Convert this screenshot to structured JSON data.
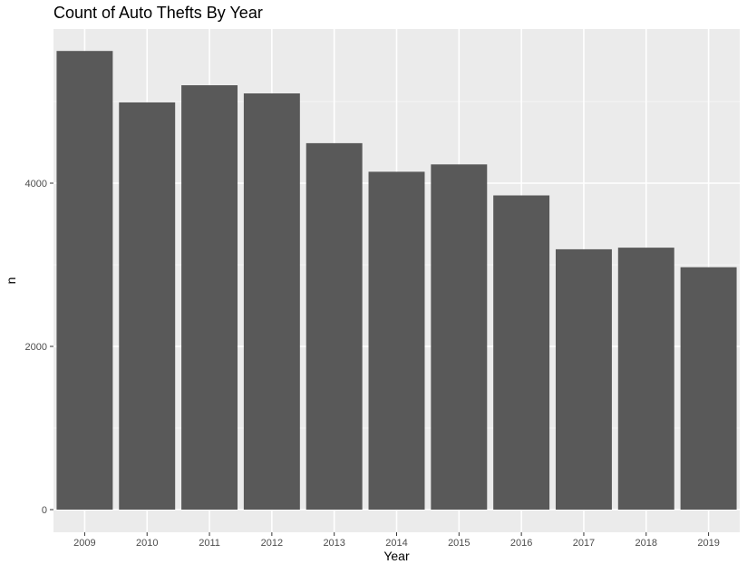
{
  "chart_data": {
    "type": "bar",
    "title": "Count of Auto Thefts By Year",
    "xlabel": "Year",
    "ylabel": "n",
    "categories": [
      "2009",
      "2010",
      "2011",
      "2012",
      "2013",
      "2014",
      "2015",
      "2016",
      "2017",
      "2018",
      "2019"
    ],
    "values": [
      5620,
      4990,
      5200,
      5100,
      4490,
      4140,
      4230,
      3850,
      3190,
      3210,
      2970
    ],
    "yticks": [
      0,
      2000,
      4000
    ],
    "ylim": [
      0,
      5880
    ],
    "grid": true,
    "legend": "none",
    "colors": {
      "bar": "#595959",
      "panel": "#ebebeb",
      "grid_major": "#ffffff",
      "grid_minor": "#f5f5f5",
      "tick_text": "#4d4d4d",
      "axis_text": "#000000"
    }
  }
}
